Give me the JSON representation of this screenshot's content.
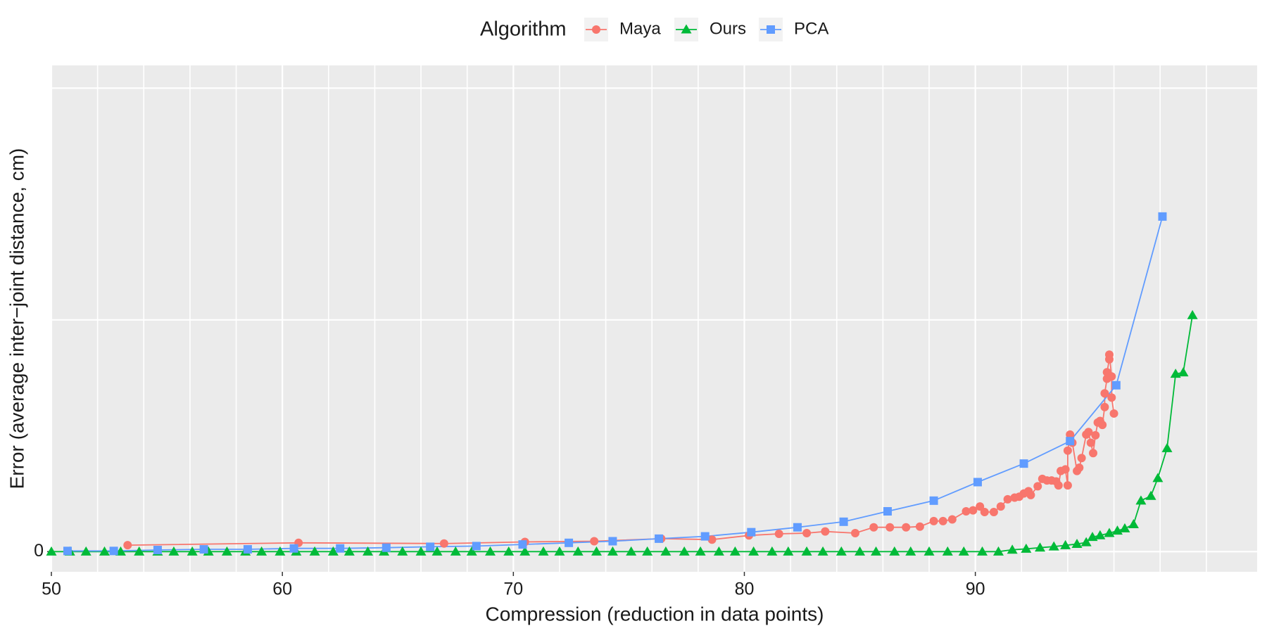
{
  "chart_data": {
    "type": "line",
    "x_label": "Compression (reduction in data points)",
    "y_label": "Error (average inter−joint distance, cm)",
    "legend_title": "Algorithm",
    "legend_position": "top",
    "grid": true,
    "xlim": [
      50,
      102.2
    ],
    "ylim": [
      -0.087,
      2.098
    ],
    "xticks": [
      50,
      {
        "value": 52,
        "label": null
      },
      {
        "value": 54,
        "label": null
      },
      {
        "value": 56,
        "label": null
      },
      {
        "value": 58,
        "label": null
      },
      60,
      {
        "value": 62,
        "label": null
      },
      {
        "value": 64,
        "label": null
      },
      {
        "value": 66,
        "label": null
      },
      {
        "value": 68,
        "label": null
      },
      70,
      {
        "value": 72,
        "label": null
      },
      {
        "value": 74,
        "label": null
      },
      {
        "value": 76,
        "label": null
      },
      {
        "value": 78,
        "label": null
      },
      80,
      {
        "value": 82,
        "label": null
      },
      {
        "value": 84,
        "label": null
      },
      {
        "value": 86,
        "label": null
      },
      {
        "value": 88,
        "label": null
      },
      90,
      {
        "value": 92,
        "label": null
      },
      {
        "value": 94,
        "label": null
      },
      {
        "value": 96,
        "label": null
      },
      {
        "value": 98,
        "label": null
      },
      {
        "value": 100,
        "label": null
      }
    ],
    "yticks": [
      0,
      {
        "value": 1,
        "label": null
      },
      {
        "value": 2,
        "label": null
      }
    ],
    "series": [
      {
        "name": "Maya",
        "color": "#F8766D",
        "marker": "circle",
        "x": [
          53.3,
          60.7,
          67,
          70.5,
          73.5,
          76.4,
          78.6,
          80.2,
          81.5,
          82.7,
          83.5,
          84.8,
          85.6,
          86.3,
          87,
          87.6,
          88.2,
          88.6,
          89,
          89.6,
          89.9,
          90.2,
          90.4,
          90.8,
          91.1,
          91.4,
          91.7,
          91.9,
          92.1,
          92.3,
          92.4,
          92.7,
          92.9,
          93.1,
          93.3,
          93.5,
          93.6,
          93.7,
          93.9,
          94,
          94,
          94.1,
          94.2,
          94.4,
          94.5,
          94.6,
          94.8,
          94.9,
          95,
          95.1,
          95.2,
          95.3,
          95.4,
          95.5,
          95.6,
          95.6,
          95.7,
          95.7,
          95.8,
          95.8,
          95.9,
          95.9,
          96
        ],
        "values": [
          0.028,
          0.038,
          0.035,
          0.042,
          0.045,
          0.056,
          0.052,
          0.07,
          0.077,
          0.08,
          0.087,
          0.08,
          0.105,
          0.105,
          0.105,
          0.108,
          0.132,
          0.132,
          0.139,
          0.174,
          0.178,
          0.195,
          0.171,
          0.171,
          0.195,
          0.226,
          0.233,
          0.237,
          0.251,
          0.261,
          0.244,
          0.282,
          0.314,
          0.307,
          0.307,
          0.303,
          0.286,
          0.348,
          0.355,
          0.286,
          0.436,
          0.505,
          0.47,
          0.348,
          0.362,
          0.404,
          0.505,
          0.516,
          0.47,
          0.425,
          0.502,
          0.557,
          0.564,
          0.547,
          0.624,
          0.683,
          0.746,
          0.774,
          0.83,
          0.85,
          0.756,
          0.665,
          0.596
        ]
      },
      {
        "name": "Ours",
        "color": "#00BA38",
        "marker": "triangle",
        "x": [
          50,
          50.8,
          51.5,
          52.3,
          53,
          53.8,
          54.6,
          55.3,
          56.1,
          56.8,
          57.6,
          58.4,
          59.1,
          59.9,
          60.6,
          61.4,
          62.2,
          62.9,
          63.7,
          64.4,
          65.2,
          66,
          66.7,
          67.5,
          68.2,
          69,
          69.8,
          70.5,
          71.3,
          72,
          72.8,
          73.6,
          74.3,
          75.1,
          75.8,
          76.6,
          77.4,
          78.1,
          78.9,
          79.6,
          80.4,
          81.2,
          81.9,
          82.7,
          83.4,
          84.2,
          85,
          85.7,
          86.5,
          87.2,
          88,
          88.8,
          89.5,
          90.3,
          91,
          91.6,
          92.2,
          92.8,
          93.4,
          93.9,
          94.4,
          94.8,
          95.07,
          95.4,
          95.8,
          96.15,
          96.47,
          96.85,
          97.17,
          97.6,
          97.9,
          98.3,
          98.67,
          99.0,
          99.4
        ],
        "values": [
          0,
          0,
          0,
          0,
          0,
          0,
          0,
          0,
          0,
          0,
          0,
          0,
          0,
          0,
          0,
          0,
          0,
          0,
          0,
          0,
          0,
          0,
          0,
          0,
          0,
          0,
          0,
          0,
          0,
          0,
          0,
          0,
          0,
          0,
          0,
          0,
          0,
          0,
          0,
          0,
          0,
          0,
          0,
          0,
          0,
          0,
          0,
          0,
          0,
          0,
          0,
          0,
          0,
          0,
          0,
          0.008,
          0.012,
          0.017,
          0.022,
          0.027,
          0.033,
          0.04,
          0.063,
          0.07,
          0.08,
          0.09,
          0.1,
          0.118,
          0.22,
          0.24,
          0.317,
          0.446,
          0.767,
          0.773,
          1.02
        ]
      },
      {
        "name": "PCA",
        "color": "#619CFF",
        "marker": "square",
        "x": [
          50.7,
          52.7,
          54.6,
          56.6,
          58.5,
          60.5,
          62.5,
          64.5,
          66.4,
          68.4,
          70.4,
          72.4,
          74.3,
          76.3,
          78.3,
          80.3,
          82.3,
          84.3,
          86.2,
          88.2,
          90.1,
          92.1,
          94.1,
          96.1,
          98.1
        ],
        "values": [
          0.003,
          0.003,
          0.007,
          0.01,
          0.01,
          0.014,
          0.014,
          0.017,
          0.021,
          0.024,
          0.031,
          0.038,
          0.045,
          0.056,
          0.066,
          0.084,
          0.105,
          0.129,
          0.174,
          0.22,
          0.3,
          0.38,
          0.477,
          0.718,
          1.446
        ]
      }
    ]
  }
}
